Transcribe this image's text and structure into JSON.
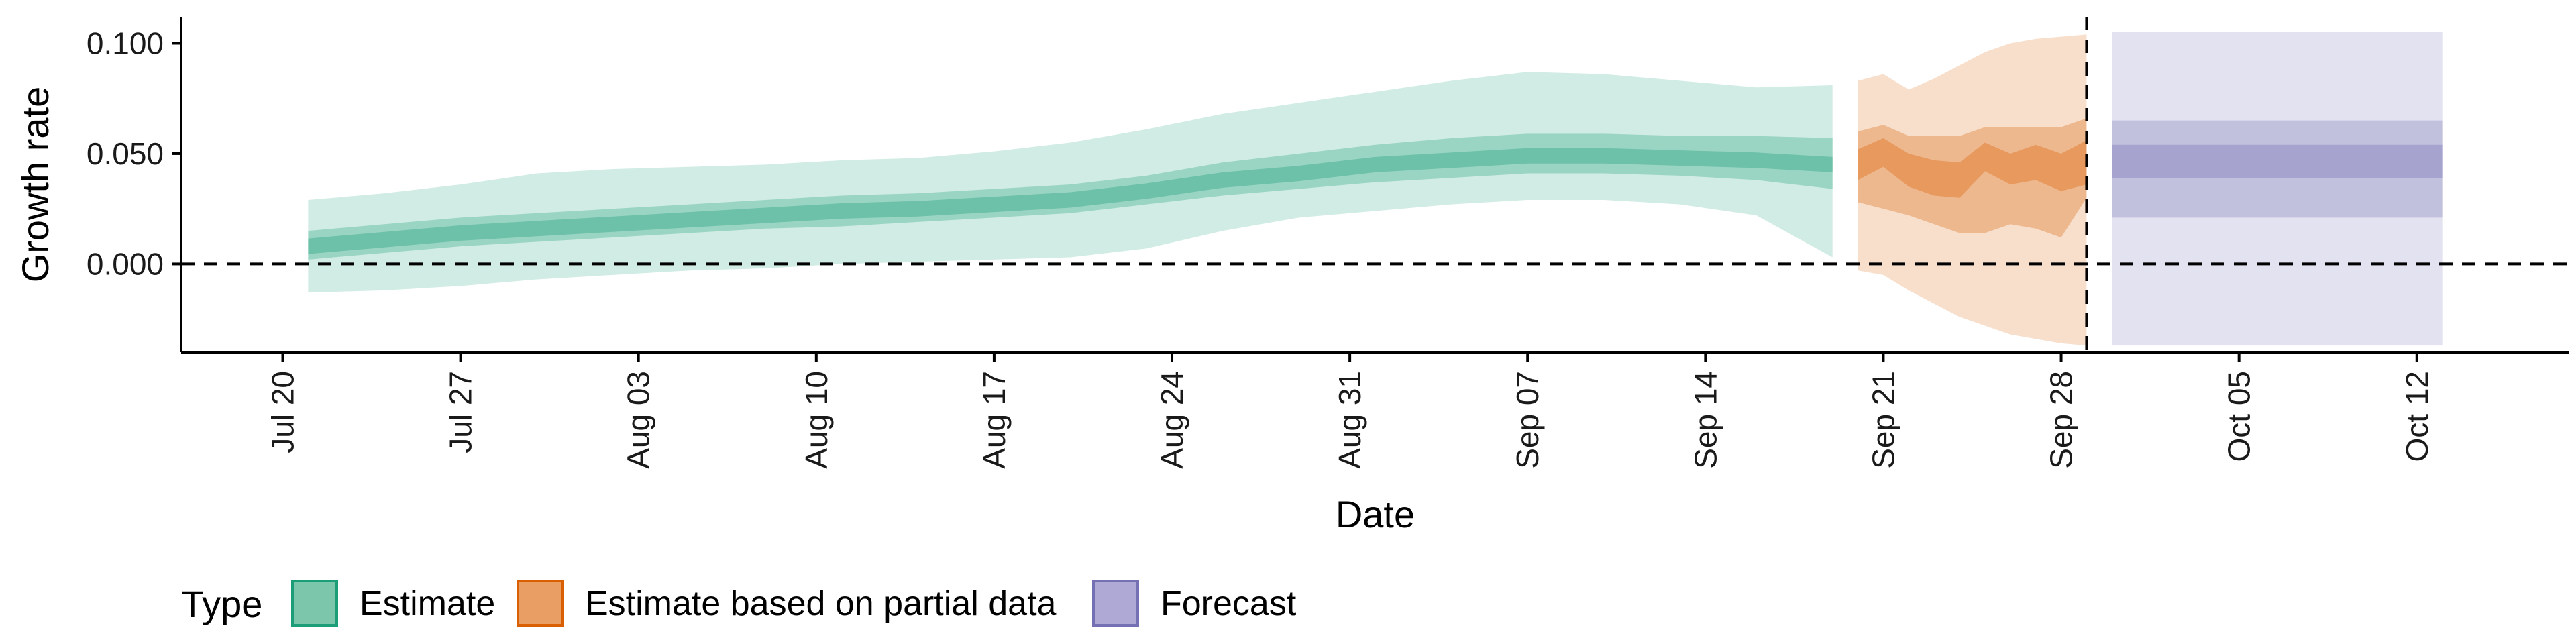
{
  "chart_data": {
    "type": "area",
    "title": "",
    "xlabel": "Date",
    "ylabel": "Growth rate",
    "ylim": [
      -0.04,
      0.112
    ],
    "xlim": [
      "2020-07-16",
      "2020-10-18"
    ],
    "y_ticks": [
      0.0,
      0.05,
      0.1
    ],
    "y_tick_labels": [
      "0.000",
      "0.050",
      "0.100"
    ],
    "x_ticks": [
      "2020-07-20",
      "2020-07-27",
      "2020-08-03",
      "2020-08-10",
      "2020-08-17",
      "2020-08-24",
      "2020-08-31",
      "2020-09-07",
      "2020-09-14",
      "2020-09-21",
      "2020-09-28",
      "2020-10-05",
      "2020-10-12"
    ],
    "x_tick_labels": [
      "Jul 20",
      "Jul 27",
      "Aug 03",
      "Aug 10",
      "Aug 17",
      "Aug 24",
      "Aug 31",
      "Sep 07",
      "Sep 14",
      "Sep 21",
      "Sep 28",
      "Oct 05",
      "Oct 12"
    ],
    "grid": false,
    "legend_position": "bottom",
    "legend_title": "Type",
    "reference_lines": {
      "horizontal_y": 0.0,
      "vertical_x": "2020-09-29"
    },
    "series": [
      {
        "name": "Estimate",
        "color": "#1b9e77",
        "x": [
          "2020-07-21",
          "2020-07-24",
          "2020-07-27",
          "2020-07-30",
          "2020-08-02",
          "2020-08-05",
          "2020-08-08",
          "2020-08-11",
          "2020-08-14",
          "2020-08-17",
          "2020-08-20",
          "2020-08-23",
          "2020-08-26",
          "2020-08-29",
          "2020-09-01",
          "2020-09-04",
          "2020-09-07",
          "2020-09-10",
          "2020-09-13",
          "2020-09-16",
          "2020-09-19"
        ],
        "median": [
          0.008,
          0.011,
          0.014,
          0.016,
          0.018,
          0.02,
          0.022,
          0.024,
          0.025,
          0.027,
          0.029,
          0.033,
          0.038,
          0.041,
          0.045,
          0.047,
          0.049,
          0.049,
          0.048,
          0.047,
          0.045
        ],
        "inner_lower": [
          0.002,
          0.005,
          0.008,
          0.01,
          0.012,
          0.014,
          0.016,
          0.017,
          0.019,
          0.021,
          0.023,
          0.027,
          0.031,
          0.034,
          0.037,
          0.039,
          0.041,
          0.041,
          0.04,
          0.038,
          0.034
        ],
        "inner_upper": [
          0.015,
          0.018,
          0.021,
          0.023,
          0.025,
          0.027,
          0.029,
          0.031,
          0.032,
          0.034,
          0.036,
          0.04,
          0.046,
          0.05,
          0.054,
          0.057,
          0.059,
          0.059,
          0.058,
          0.058,
          0.057
        ],
        "outer_lower": [
          -0.013,
          -0.012,
          -0.01,
          -0.007,
          -0.005,
          -0.003,
          -0.002,
          0.0,
          0.001,
          0.002,
          0.003,
          0.007,
          0.015,
          0.021,
          0.024,
          0.027,
          0.029,
          0.029,
          0.027,
          0.022,
          0.003
        ],
        "outer_upper": [
          0.029,
          0.032,
          0.036,
          0.041,
          0.043,
          0.044,
          0.045,
          0.047,
          0.048,
          0.051,
          0.055,
          0.061,
          0.068,
          0.073,
          0.078,
          0.083,
          0.087,
          0.086,
          0.083,
          0.08,
          0.081
        ]
      },
      {
        "name": "Estimate based on partial data",
        "color": "#d95f02",
        "x": [
          "2020-09-20",
          "2020-09-21",
          "2020-09-22",
          "2020-09-23",
          "2020-09-24",
          "2020-09-25",
          "2020-09-26",
          "2020-09-27",
          "2020-09-28",
          "2020-09-29"
        ],
        "median": [
          0.046,
          0.05,
          0.043,
          0.04,
          0.038,
          0.05,
          0.044,
          0.048,
          0.043,
          0.048
        ],
        "inner_lower": [
          0.038,
          0.044,
          0.035,
          0.031,
          0.03,
          0.042,
          0.036,
          0.038,
          0.033,
          0.036
        ],
        "inner_upper": [
          0.052,
          0.057,
          0.05,
          0.047,
          0.046,
          0.055,
          0.05,
          0.054,
          0.05,
          0.056
        ],
        "outer_lower": [
          0.028,
          0.025,
          0.022,
          0.018,
          0.014,
          0.014,
          0.018,
          0.016,
          0.012,
          0.03
        ],
        "outer_upper": [
          0.06,
          0.063,
          0.058,
          0.058,
          0.058,
          0.062,
          0.062,
          0.062,
          0.062,
          0.066
        ],
        "wide_lower": [
          -0.003,
          -0.005,
          -0.012,
          -0.018,
          -0.024,
          -0.028,
          -0.032,
          -0.034,
          -0.036,
          -0.037
        ],
        "wide_upper": [
          0.083,
          0.086,
          0.079,
          0.084,
          0.09,
          0.096,
          0.1,
          0.102,
          0.103,
          0.104
        ]
      },
      {
        "name": "Forecast",
        "color": "#7570b3",
        "x": [
          "2020-09-30",
          "2020-10-13"
        ],
        "median": [
          0.047,
          0.047
        ],
        "inner_lower": [
          0.039,
          0.039
        ],
        "inner_upper": [
          0.054,
          0.054
        ],
        "outer_lower": [
          0.021,
          0.021
        ],
        "outer_upper": [
          0.065,
          0.065
        ],
        "wide_lower": [
          -0.037,
          -0.037
        ],
        "wide_upper": [
          0.105,
          0.105
        ]
      }
    ]
  },
  "legend": {
    "title": "Type",
    "items": [
      {
        "label": "Estimate",
        "fill": "#7cc6ab",
        "stroke": "#1b9e77"
      },
      {
        "label": "Estimate based on partial data",
        "fill": "#e99e63",
        "stroke": "#d95f02"
      },
      {
        "label": "Forecast",
        "fill": "#aeaad5",
        "stroke": "#7570b3"
      }
    ]
  }
}
